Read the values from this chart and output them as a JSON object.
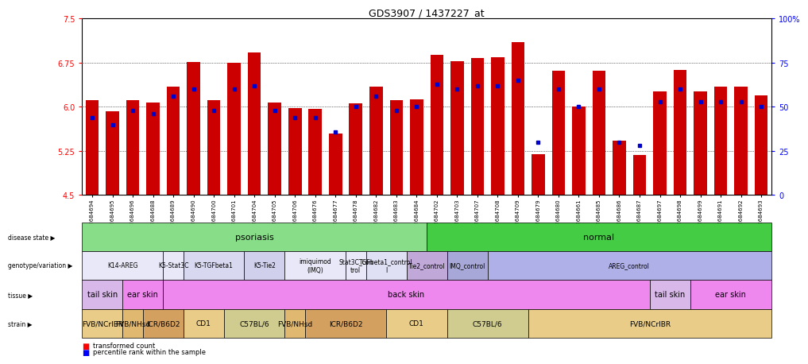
{
  "title": "GDS3907 / 1437227_at",
  "samples": [
    "GSM684694",
    "GSM684695",
    "GSM684696",
    "GSM684688",
    "GSM684689",
    "GSM684690",
    "GSM684700",
    "GSM684701",
    "GSM684704",
    "GSM684705",
    "GSM684706",
    "GSM684676",
    "GSM684677",
    "GSM684678",
    "GSM684682",
    "GSM684683",
    "GSM684684",
    "GSM684702",
    "GSM684703",
    "GSM684707",
    "GSM684708",
    "GSM684709",
    "GSM684679",
    "GSM684680",
    "GSM684661",
    "GSM684685",
    "GSM684686",
    "GSM684687",
    "GSM684697",
    "GSM684698",
    "GSM684699",
    "GSM684691",
    "GSM684692",
    "GSM684693"
  ],
  "bar_values": [
    6.12,
    5.93,
    6.12,
    6.07,
    6.34,
    6.76,
    6.12,
    6.75,
    6.93,
    6.08,
    5.98,
    5.97,
    5.54,
    6.06,
    6.35,
    6.11,
    6.13,
    6.88,
    6.77,
    6.83,
    6.84,
    7.1,
    5.19,
    6.61,
    6.0,
    6.61,
    5.42,
    5.18,
    6.26,
    6.63,
    6.26,
    6.35,
    6.35,
    6.19
  ],
  "percentile_values": [
    44,
    40,
    48,
    46,
    56,
    60,
    48,
    60,
    62,
    48,
    44,
    44,
    36,
    50,
    56,
    48,
    50,
    63,
    60,
    62,
    62,
    65,
    30,
    60,
    50,
    60,
    30,
    28,
    53,
    60,
    53,
    53,
    53,
    50
  ],
  "y_min": 4.5,
  "y_max": 7.5,
  "y_ticks": [
    4.5,
    5.25,
    6.0,
    6.75,
    7.5
  ],
  "y_right_ticks": [
    0,
    25,
    50,
    75,
    100
  ],
  "bar_color": "#cc0000",
  "blue_color": "#0000cc",
  "disease_groups": [
    {
      "label": "psoriasis",
      "start": 0,
      "end": 17,
      "color": "#88dd88"
    },
    {
      "label": "normal",
      "start": 17,
      "end": 34,
      "color": "#44cc44"
    }
  ],
  "geno_groups": [
    {
      "label": "K14-AREG",
      "start": 0,
      "end": 4,
      "color": "#e8e8f8"
    },
    {
      "label": "K5-Stat3C",
      "start": 4,
      "end": 5,
      "color": "#e8e8f8"
    },
    {
      "label": "K5-TGFbeta1",
      "start": 5,
      "end": 8,
      "color": "#d8d8f0"
    },
    {
      "label": "K5-Tie2",
      "start": 8,
      "end": 10,
      "color": "#d0d0ec"
    },
    {
      "label": "imiquimod\n(IMQ)",
      "start": 10,
      "end": 13,
      "color": "#e8e8f8"
    },
    {
      "label": "Stat3C_con\ntrol",
      "start": 13,
      "end": 14,
      "color": "#e8e8f8"
    },
    {
      "label": "TGFbeta1_control\nl",
      "start": 14,
      "end": 16,
      "color": "#e0e0f4"
    },
    {
      "label": "Tie2_control",
      "start": 16,
      "end": 18,
      "color": "#c0a8d8"
    },
    {
      "label": "IMQ_control",
      "start": 18,
      "end": 20,
      "color": "#a8a8d8"
    },
    {
      "label": "AREG_control",
      "start": 20,
      "end": 34,
      "color": "#b0b0e8"
    }
  ],
  "tissue_groups": [
    {
      "label": "tail skin",
      "start": 0,
      "end": 2,
      "color": "#d8b8e8"
    },
    {
      "label": "ear skin",
      "start": 2,
      "end": 4,
      "color": "#ee88ee"
    },
    {
      "label": "back skin",
      "start": 4,
      "end": 28,
      "color": "#ee88ee"
    },
    {
      "label": "tail skin",
      "start": 28,
      "end": 30,
      "color": "#d8b8e8"
    },
    {
      "label": "ear skin",
      "start": 30,
      "end": 34,
      "color": "#ee88ee"
    }
  ],
  "strain_groups": [
    {
      "label": "FVB/NCrIBR",
      "start": 0,
      "end": 2,
      "color": "#e8cc88"
    },
    {
      "label": "FVB/NHsd",
      "start": 2,
      "end": 3,
      "color": "#e0b870"
    },
    {
      "label": "ICR/B6D2",
      "start": 3,
      "end": 5,
      "color": "#d4a060"
    },
    {
      "label": "CD1",
      "start": 5,
      "end": 7,
      "color": "#e8cc88"
    },
    {
      "label": "C57BL/6",
      "start": 7,
      "end": 10,
      "color": "#d0cc90"
    },
    {
      "label": "FVB/NHsd",
      "start": 10,
      "end": 11,
      "color": "#e0b870"
    },
    {
      "label": "ICR/B6D2",
      "start": 11,
      "end": 15,
      "color": "#d4a060"
    },
    {
      "label": "CD1",
      "start": 15,
      "end": 18,
      "color": "#e8cc88"
    },
    {
      "label": "C57BL/6",
      "start": 18,
      "end": 22,
      "color": "#d0cc90"
    },
    {
      "label": "FVB/NCrIBR",
      "start": 22,
      "end": 34,
      "color": "#e8cc88"
    }
  ],
  "background_color": "#ffffff"
}
